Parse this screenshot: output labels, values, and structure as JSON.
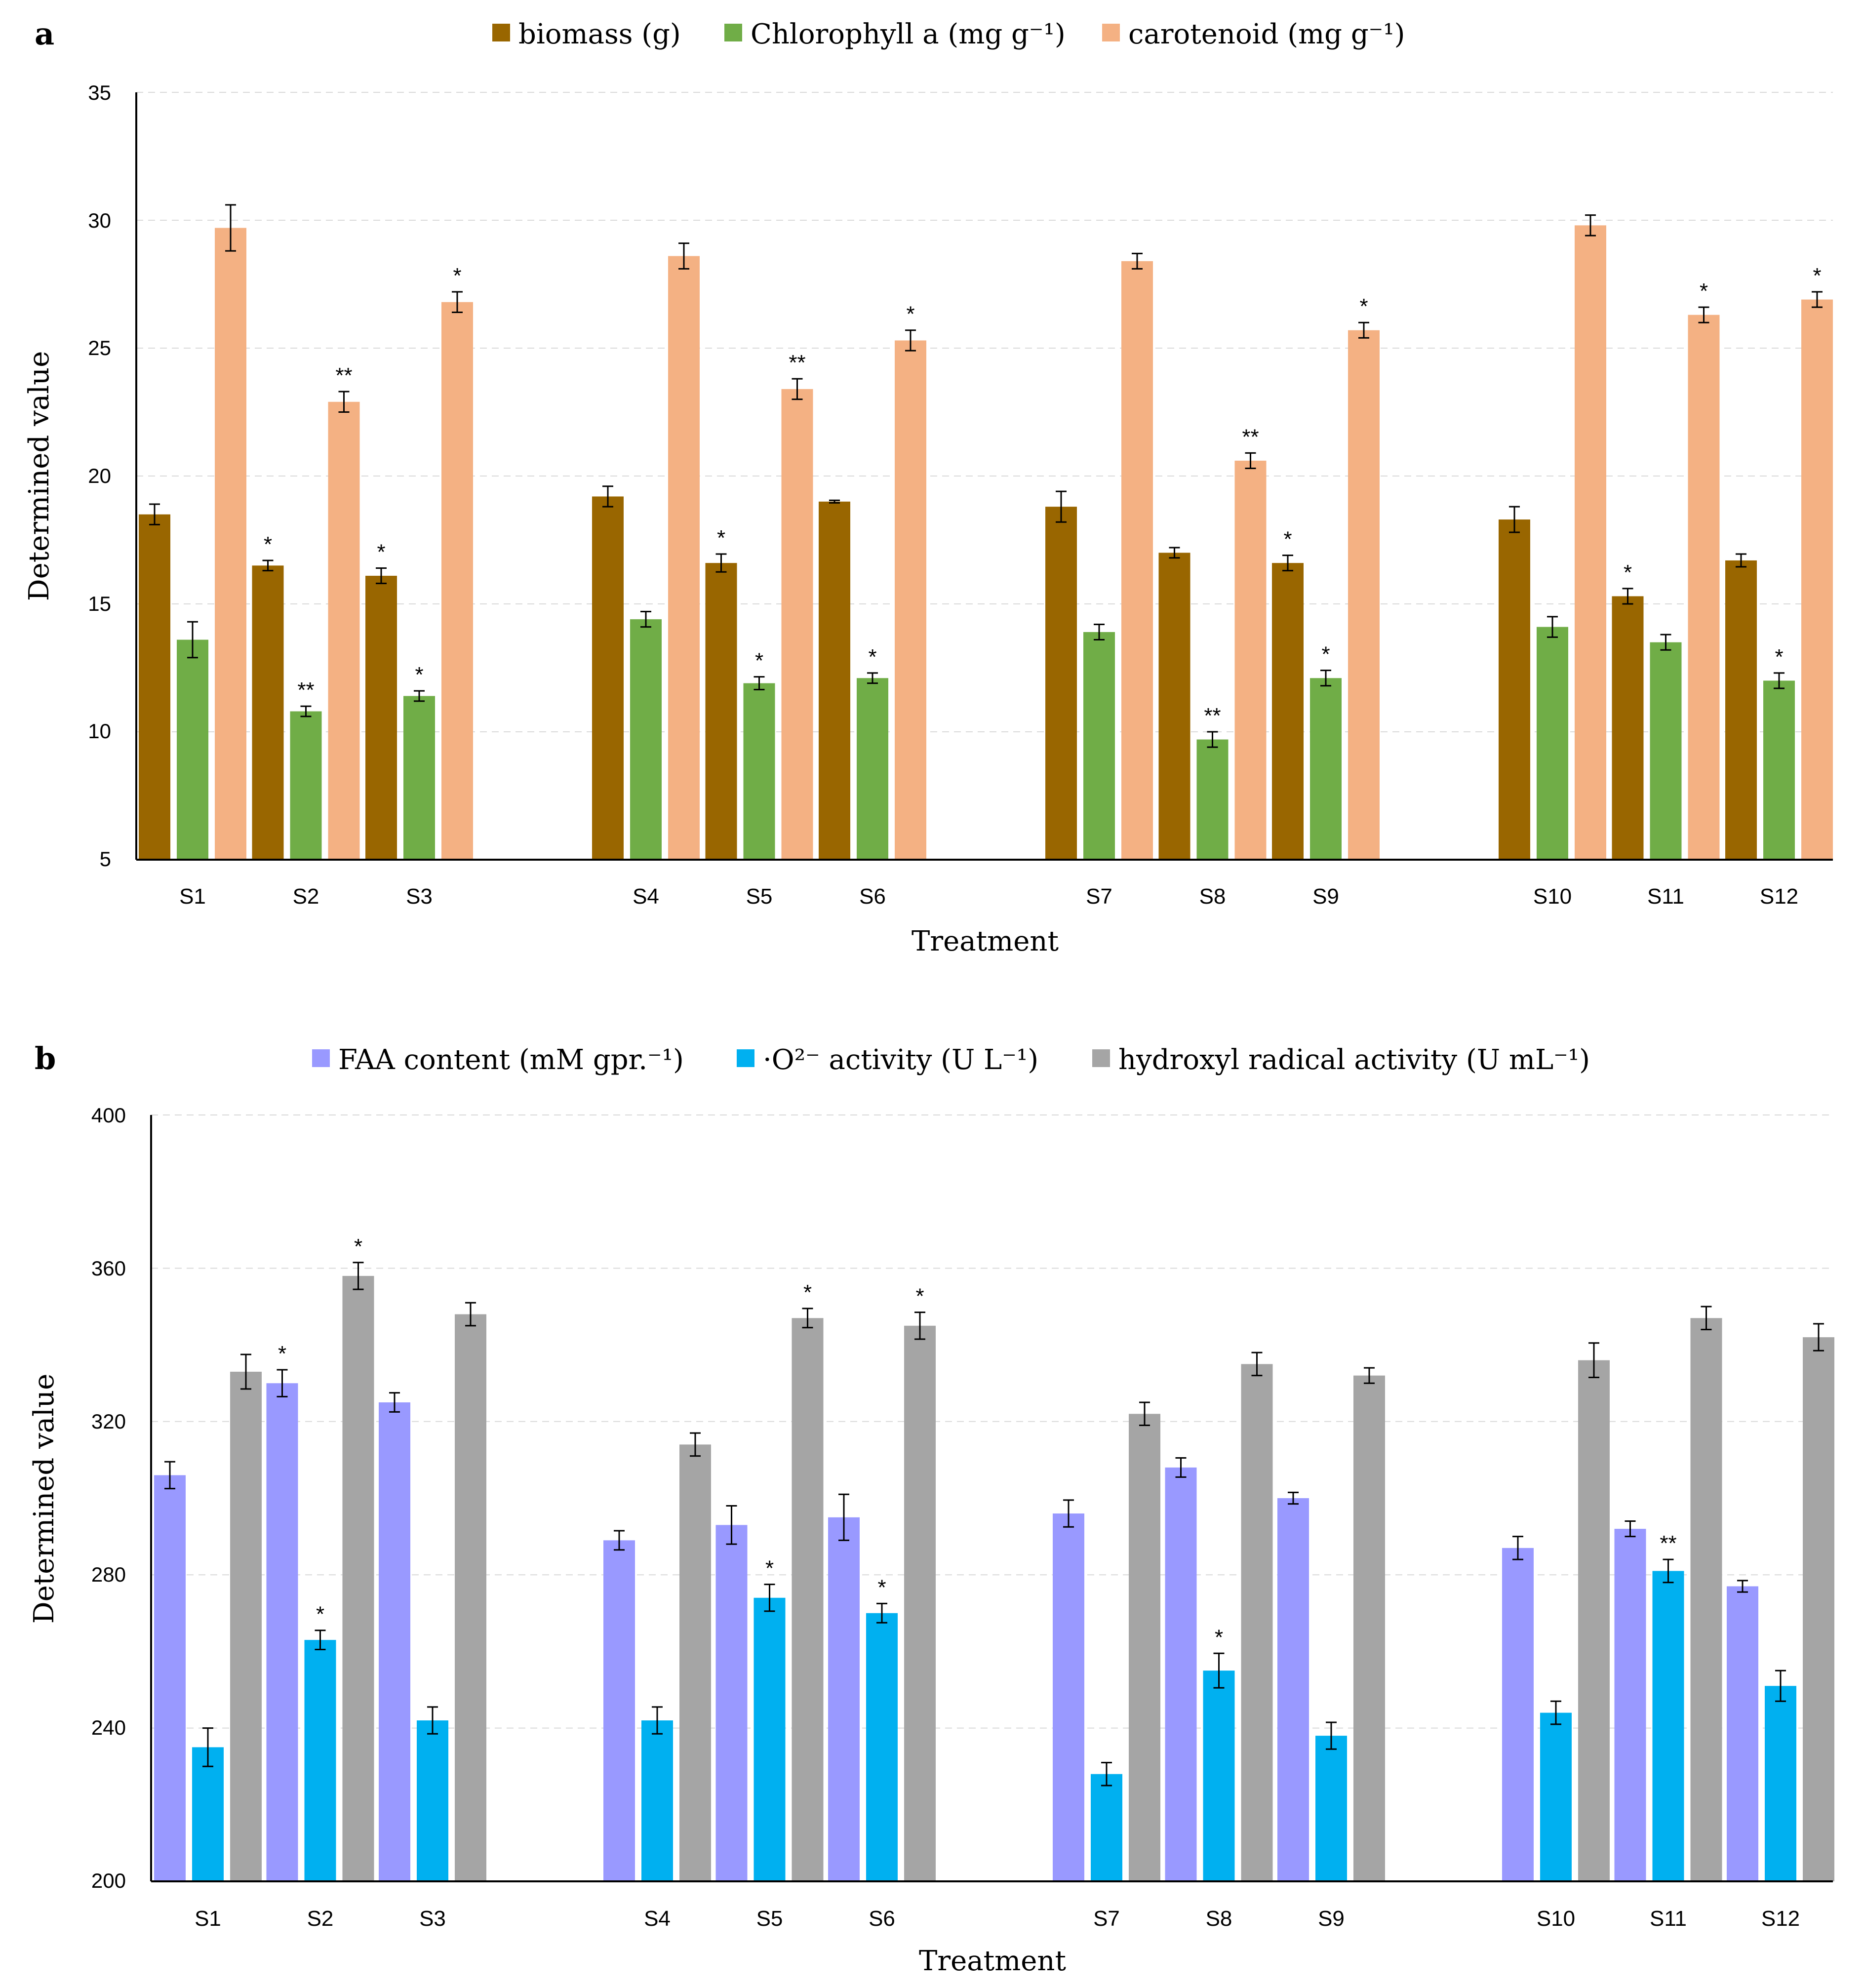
{
  "chart_data": [
    {
      "type": "bar",
      "panel_label": "a",
      "categories": [
        "S1",
        "S2",
        "S3",
        "S4",
        "S5",
        "S6",
        "S7",
        "S8",
        "S9",
        "S10",
        "S11",
        "S12"
      ],
      "groups": [
        [
          "S1",
          "S2",
          "S3"
        ],
        [
          "S4",
          "S5",
          "S6"
        ],
        [
          "S7",
          "S8",
          "S9"
        ],
        [
          "S10",
          "S11",
          "S12"
        ]
      ],
      "series": [
        {
          "name": "biomass (g)",
          "color": "#996600",
          "values": [
            18.5,
            16.5,
            16.1,
            19.2,
            16.6,
            19.0,
            18.8,
            17.0,
            16.6,
            18.3,
            15.3,
            16.7
          ],
          "errors": [
            0.4,
            0.2,
            0.3,
            0.4,
            0.35,
            0.05,
            0.6,
            0.2,
            0.3,
            0.5,
            0.3,
            0.25
          ],
          "marks": [
            "",
            "*",
            "*",
            "",
            "*",
            "",
            "",
            "",
            "*",
            "",
            "*",
            ""
          ]
        },
        {
          "name": "Chlorophyll a (mg g⁻¹)",
          "color": "#70AD47",
          "values": [
            13.6,
            10.8,
            11.4,
            14.4,
            11.9,
            12.1,
            13.9,
            9.7,
            12.1,
            14.1,
            13.5,
            12.0
          ],
          "errors": [
            0.7,
            0.2,
            0.2,
            0.3,
            0.25,
            0.2,
            0.3,
            0.3,
            0.3,
            0.4,
            0.3,
            0.3
          ],
          "marks": [
            "",
            "**",
            "*",
            "",
            "*",
            "*",
            "",
            "**",
            "*",
            "",
            "",
            "*"
          ]
        },
        {
          "name": "carotenoid (mg g⁻¹)",
          "color": "#F4B183",
          "values": [
            29.7,
            22.9,
            26.8,
            28.6,
            23.4,
            25.3,
            28.4,
            20.6,
            25.7,
            29.8,
            26.3,
            26.9
          ],
          "errors": [
            0.9,
            0.4,
            0.4,
            0.5,
            0.4,
            0.4,
            0.3,
            0.3,
            0.3,
            0.4,
            0.3,
            0.3
          ],
          "marks": [
            "",
            "**",
            "*",
            "",
            "**",
            "*",
            "",
            "**",
            "*",
            "",
            "*",
            "*"
          ]
        }
      ],
      "xlabel": "Treatment",
      "ylabel": "Determined value",
      "ylim": [
        5,
        35
      ],
      "yticks": [
        "5",
        "10",
        "15",
        "20",
        "25",
        "30",
        "35"
      ],
      "grid": true,
      "legend": "top"
    },
    {
      "type": "bar",
      "panel_label": "b",
      "categories": [
        "S1",
        "S2",
        "S3",
        "S4",
        "S5",
        "S6",
        "S7",
        "S8",
        "S9",
        "S10",
        "S11",
        "S12"
      ],
      "groups": [
        [
          "S1",
          "S2",
          "S3"
        ],
        [
          "S4",
          "S5",
          "S6"
        ],
        [
          "S7",
          "S8",
          "S9"
        ],
        [
          "S10",
          "S11",
          "S12"
        ]
      ],
      "series": [
        {
          "name": "FAA content (mM gpr.⁻¹)",
          "color": "#9999FF",
          "values": [
            306,
            330,
            325,
            289,
            293,
            295,
            296,
            308,
            300,
            287,
            292,
            277
          ],
          "errors": [
            3.5,
            3.5,
            2.5,
            2.5,
            5,
            6,
            3.5,
            2.5,
            1.5,
            3,
            2,
            1.5
          ],
          "marks": [
            "",
            "*",
            "",
            "",
            "",
            "",
            "",
            "",
            "",
            "",
            "",
            ""
          ]
        },
        {
          "name": "·O²⁻ activity  (U L⁻¹)",
          "color": "#00B0F0",
          "values": [
            235,
            263,
            242,
            242,
            274,
            270,
            228,
            255,
            238,
            244,
            281,
            251
          ],
          "errors": [
            5,
            2.5,
            3.5,
            3.5,
            3.5,
            2.5,
            3,
            4.5,
            3.5,
            3,
            3,
            4
          ],
          "marks": [
            "",
            "*",
            "",
            "",
            "*",
            "*",
            "",
            "*",
            "",
            "",
            "**",
            ""
          ]
        },
        {
          "name": "hydroxyl radical activity (U mL⁻¹)",
          "color": "#A5A5A5",
          "values": [
            333,
            358,
            348,
            314,
            347,
            345,
            322,
            335,
            332,
            336,
            347,
            342
          ],
          "errors": [
            4.5,
            3.5,
            3,
            3,
            2.5,
            3.5,
            3,
            3,
            2,
            4.5,
            3,
            3.5
          ],
          "marks": [
            "",
            "*",
            "",
            "",
            "*",
            "*",
            "",
            "",
            "",
            "",
            "",
            ""
          ]
        }
      ],
      "xlabel": "Treatment",
      "ylabel": "Determined value",
      "ylim": [
        200,
        400
      ],
      "yticks": [
        "200",
        "240",
        "280",
        "320",
        "360",
        "400"
      ],
      "grid": true,
      "legend": "top"
    }
  ]
}
